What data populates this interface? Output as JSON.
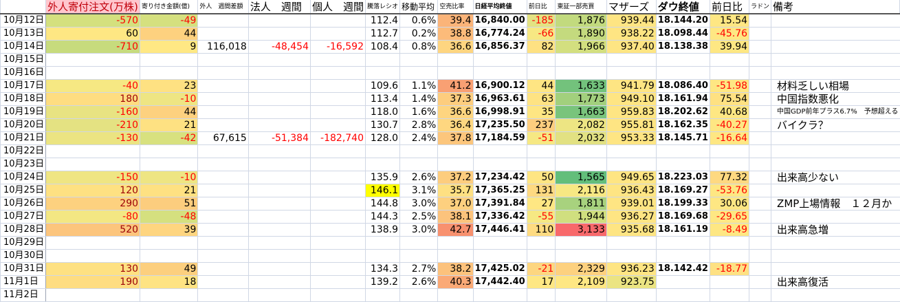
{
  "headers": [
    "",
    "外人寄付注文(万株)",
    "寄り付き金額(億)",
    "外人　週間差額",
    "法人　週間",
    "個人　週間",
    "騰落レシオ",
    "移動平均",
    "空売比率",
    "日経平均終値",
    "前日比",
    "東証一部売買",
    "マザーズ",
    "ダウ終値",
    "前日比",
    "ラドン",
    "備考"
  ],
  "colors": {
    "negative_text": "#ff0000",
    "header_highlight": "#ffc7ce",
    "max_green": "#63be7b",
    "max_red": "#f8696b",
    "highlight_yellow": "#ffff00"
  },
  "rows": [
    {
      "date": "10月12日",
      "v": [
        "-570",
        "-49",
        "",
        "",
        "",
        "112.4",
        "0.6%",
        "39.4",
        "16,840.00",
        "-185",
        "1,876",
        "939.44",
        "18.144.20",
        "15.54",
        "",
        ""
      ],
      "bg": [
        "#d4e07e",
        "#d5e07f",
        "",
        "",
        "",
        "",
        "",
        "#fbb479",
        "",
        "#e3e282",
        "#c2da7e",
        "#fee583",
        "",
        "#fee783",
        "",
        ""
      ]
    },
    {
      "date": "10月13日",
      "v": [
        "60",
        "44",
        "",
        "",
        "",
        "112.7",
        "0.2%",
        "38.8",
        "16,774.24",
        "-66",
        "1,890",
        "938.22",
        "18.098.44",
        "-45.76",
        "",
        ""
      ],
      "bg": [
        "#fee783",
        "#fdd17f",
        "",
        "",
        "",
        "",
        "",
        "#fcbb7a",
        "",
        "#f7e883",
        "#c4da7e",
        "#fee583",
        "",
        "#fee783",
        "",
        ""
      ]
    },
    {
      "date": "10月14日",
      "v": [
        "-710",
        "9",
        "116,018",
        "-48,454",
        "-16,592",
        "108.4",
        "0.8%",
        "36.6",
        "16,856.37",
        "82",
        "1,966",
        "937.40",
        "18.138.38",
        "39.94",
        "",
        ""
      ],
      "bg": [
        "#c7db7d",
        "#ffe884",
        "",
        "",
        "",
        "",
        "",
        "#fed580",
        "",
        "#fee182",
        "#d3df7f",
        "#fee583",
        "",
        "#fee783",
        "",
        ""
      ]
    },
    {
      "date": "10月15日"
    },
    {
      "date": "10月16日"
    },
    {
      "date": "10月17日",
      "v": [
        "-40",
        "23",
        "",
        "",
        "",
        "109.6",
        "1.1%",
        "41.2",
        "16,900.12",
        "44",
        "1,633",
        "941.79",
        "18.086.40",
        "-51.98",
        "",
        "材料乏しい相場"
      ],
      "bg": [
        "#f6e883",
        "#fee182",
        "",
        "",
        "",
        "",
        "",
        "#f9a073",
        "",
        "#fee583",
        "#73c27c",
        "#fee583",
        "",
        "#fee783",
        "",
        ""
      ]
    },
    {
      "date": "10月18日",
      "v": [
        "180",
        "-10",
        "",
        "",
        "",
        "113.4",
        "1.4%",
        "37.3",
        "16,963.61",
        "63",
        "1,773",
        "949.10",
        "18.161.94",
        "75.54",
        "",
        "中国指数悪化"
      ],
      "bg": [
        "#fedd81",
        "#eee583",
        "",
        "",
        "",
        "",
        "",
        "#fdcd7e",
        "",
        "#fee383",
        "#a2d07d",
        "#fee583",
        "",
        "#fee182",
        "",
        ""
      ]
    },
    {
      "date": "10月19日",
      "v": [
        "-160",
        "44",
        "",
        "",
        "",
        "118.0",
        "1.6%",
        "36.6",
        "16,998.91",
        "35",
        "1,663",
        "959.83",
        "18.202.62",
        "40.68",
        "",
        "中国GDP前年プラス6.7%　予想超える"
      ],
      "bg": [
        "#e8e382",
        "#fdd17f",
        "",
        "",
        "",
        "",
        "",
        "#fed580",
        "",
        "#fee683",
        "#79c47c",
        "#fee583",
        "",
        "#fee783",
        "",
        ""
      ]
    },
    {
      "date": "10月20日",
      "v": [
        "-210",
        "21",
        "",
        "",
        "",
        "130.7",
        "2.8%",
        "36.4",
        "17,235.50",
        "237",
        "2,082",
        "955.81",
        "18.162.35",
        "-40.27",
        "",
        "バイクラ？"
      ],
      "bg": [
        "#e4e282",
        "#fee182",
        "",
        "",
        "",
        "",
        "",
        "#fed780",
        "",
        "#fdcd7e",
        "#ede583",
        "#fee583",
        "",
        "#fee783",
        "",
        ""
      ]
    },
    {
      "date": "10月21日",
      "v": [
        "-130",
        "-42",
        "67,615",
        "-51,384",
        "-182,740",
        "128.0",
        "2.4%",
        "37.8",
        "17,184.59",
        "-51",
        "2,032",
        "953.33",
        "18.145.71",
        "-16.64",
        "",
        ""
      ],
      "bg": [
        "#ebe482",
        "#d8e17f",
        "",
        "",
        "",
        "",
        "",
        "#fcc67c",
        "",
        "#f6e883",
        "#e2e182",
        "#fee583",
        "",
        "#fee783",
        "",
        ""
      ]
    },
    {
      "date": "10月22日"
    },
    {
      "date": "10月23日"
    },
    {
      "date": "10月24日",
      "v": [
        "-150",
        "-10",
        "",
        "",
        "",
        "135.9",
        "2.6%",
        "37.2",
        "17,234.42",
        "50",
        "1,565",
        "949.65",
        "18.223.03",
        "77.32",
        "",
        "出来高少ない"
      ],
      "bg": [
        "#efe583",
        "#eee583",
        "",
        "",
        "",
        "",
        "",
        "#fdcd7e",
        "",
        "#fee583",
        "#63be7b",
        "#fee583",
        "",
        "#fed981",
        "",
        ""
      ]
    },
    {
      "date": "10月25日",
      "v": [
        "120",
        "21",
        "",
        "",
        "",
        "146.1",
        "3.1%",
        "35.7",
        "17,365.25",
        "131",
        "2,116",
        "936.43",
        "18.169.27",
        "-53.76",
        "",
        ""
      ],
      "bg": [
        "#fee182",
        "#fee182",
        "",
        "",
        "",
        "#ffff00",
        "",
        "#fee082",
        "",
        "#fed981",
        "#f7e883",
        "#fee583",
        "",
        "#fee783",
        "",
        ""
      ]
    },
    {
      "date": "10月26日",
      "v": [
        "290",
        "51",
        "",
        "",
        "",
        "144.8",
        "3.0%",
        "37.0",
        "17,391.84",
        "27",
        "1,811",
        "939.01",
        "18.199.33",
        "30.06",
        "",
        "ZMP上場情報　１２月か"
      ],
      "bg": [
        "#fdd17f",
        "#fccd7e",
        "",
        "",
        "",
        "",
        "",
        "#fdd07f",
        "",
        "#fee783",
        "#a8d27e",
        "#fee583",
        "",
        "#fee783",
        "",
        ""
      ]
    },
    {
      "date": "10月27日",
      "v": [
        "-80",
        "-48",
        "",
        "",
        "",
        "144.3",
        "2.5%",
        "38.1",
        "17,336.42",
        "-55",
        "1,944",
        "936.27",
        "18.169.68",
        "-29.65",
        "",
        ""
      ],
      "bg": [
        "#f3e783",
        "#d5e07f",
        "",
        "",
        "",
        "",
        "",
        "#fcc37c",
        "",
        "#f6e883",
        "#d0df7f",
        "#fee583",
        "",
        "#fee783",
        "",
        ""
      ]
    },
    {
      "date": "10月28日",
      "v": [
        "520",
        "39",
        "",
        "",
        "",
        "138.9",
        "3.0%",
        "42.7",
        "17,446.41",
        "110",
        "3,133",
        "935.68",
        "18.161.19",
        "-8.49",
        "",
        "出来高急増"
      ],
      "bg": [
        "#fcc57d",
        "#fed580",
        "",
        "",
        "",
        "",
        "",
        "#f8916f",
        "",
        "#fedb81",
        "#f8696b",
        "#fee583",
        "",
        "#fee783",
        "",
        ""
      ]
    },
    {
      "date": "10月29日"
    },
    {
      "date": "10月30日"
    },
    {
      "date": "10月31日",
      "v": [
        "130",
        "49",
        "",
        "",
        "",
        "134.3",
        "2.7%",
        "38.2",
        "17,425.02",
        "-21",
        "2,329",
        "936.23",
        "18.142.42",
        "-18.77",
        "",
        ""
      ],
      "bg": [
        "#fee182",
        "#fccf7e",
        "",
        "",
        "",
        "",
        "",
        "#fcc27c",
        "",
        "#fdd680",
        "#fdd17f",
        "#fee583",
        "",
        "#fee183",
        "",
        ""
      ]
    },
    {
      "date": "11月1日",
      "v": [
        "190",
        "18",
        "",
        "",
        "",
        "139.2",
        "2.6%",
        "40.3",
        "17,442.40",
        "17",
        "2,109",
        "923.75",
        "",
        "",
        "",
        "出来高復活"
      ],
      "bg": [
        "#fedd81",
        "#fee383",
        "",
        "",
        "",
        "",
        "",
        "#faa976",
        "",
        "#fee783",
        "#fee783",
        "#ebe482",
        "",
        "",
        "",
        ""
      ]
    },
    {
      "date": "11月2日"
    }
  ]
}
